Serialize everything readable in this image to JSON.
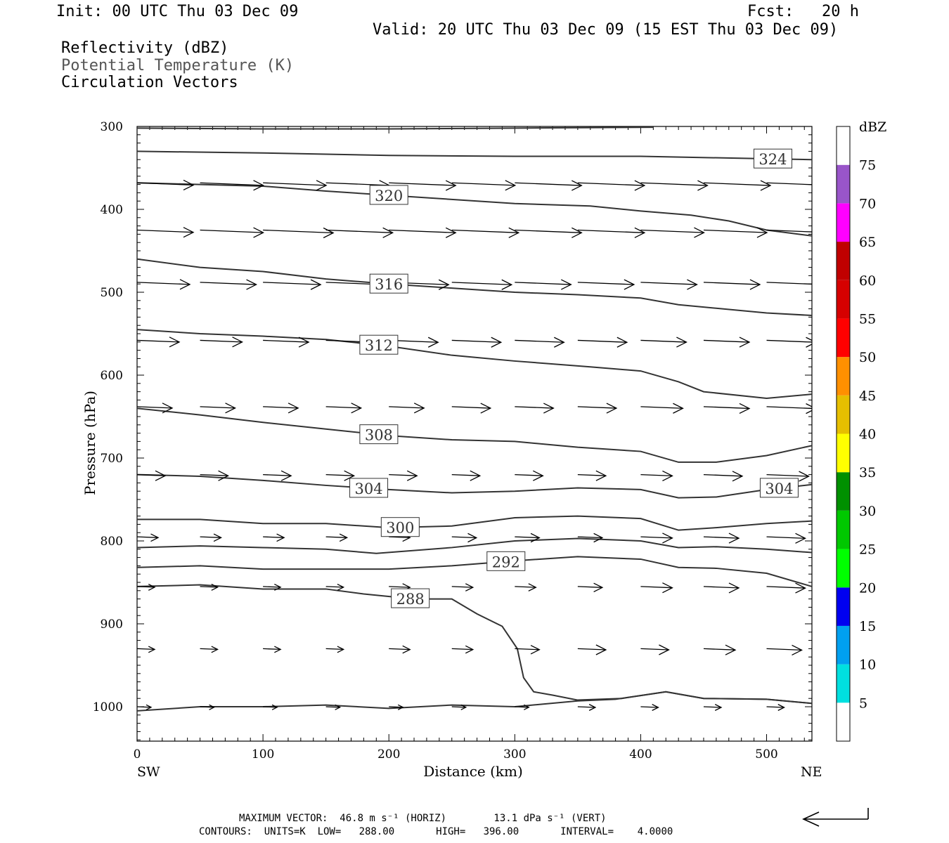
{
  "header": {
    "init": "Init: 00 UTC Thu 03 Dec 09",
    "fcst": "Fcst:   20 h",
    "valid": "Valid: 20 UTC Thu 03 Dec 09 (15 EST Thu 03 Dec 09)",
    "fields": [
      "Reflectivity (dBZ)",
      "Potential Temperature (K)",
      "Circulation Vectors"
    ]
  },
  "chart_data": {
    "type": "cross-section",
    "xlabel": "Distance (km)",
    "ylabel": "Pressure (hPa)",
    "xlim": [
      0,
      536
    ],
    "ylim": [
      1040,
      300
    ],
    "x_ticks": [
      0,
      100,
      200,
      300,
      400,
      500
    ],
    "y_ticks": [
      300,
      400,
      500,
      600,
      700,
      800,
      900,
      1000
    ],
    "x_end_labels": {
      "left": "SW",
      "right": "NE"
    },
    "colorbar": {
      "title": "dBZ",
      "labels": [
        "5",
        "10",
        "15",
        "20",
        "25",
        "30",
        "35",
        "40",
        "45",
        "50",
        "55",
        "60",
        "65",
        "70",
        "75"
      ],
      "colors": [
        "#ffffff",
        "#00e0e0",
        "#00a0f0",
        "#0000f0",
        "#00ff00",
        "#00c800",
        "#009000",
        "#ffff00",
        "#e6bf00",
        "#ff9000",
        "#ff0000",
        "#d60000",
        "#c00000",
        "#ff00ff",
        "#9955c9",
        "#ffffff"
      ]
    },
    "theta_contours": [
      {
        "level": 324,
        "label": "324",
        "points": [
          [
            0,
            330
          ],
          [
            100,
            332
          ],
          [
            200,
            335
          ],
          [
            300,
            336
          ],
          [
            400,
            336
          ],
          [
            500,
            339
          ],
          [
            536,
            340
          ]
        ],
        "label_x": 505
      },
      {
        "level": 320,
        "label": "320",
        "points": [
          [
            0,
            368
          ],
          [
            50,
            370
          ],
          [
            100,
            372
          ],
          [
            150,
            378
          ],
          [
            200,
            383
          ],
          [
            300,
            393
          ],
          [
            360,
            396
          ],
          [
            400,
            402
          ],
          [
            440,
            407
          ],
          [
            470,
            414
          ],
          [
            500,
            425
          ],
          [
            536,
            432
          ]
        ],
        "label_x": 200
      },
      {
        "level": 316,
        "label": "316",
        "points": [
          [
            0,
            460
          ],
          [
            50,
            470
          ],
          [
            100,
            475
          ],
          [
            150,
            484
          ],
          [
            200,
            490
          ],
          [
            250,
            495
          ],
          [
            300,
            500
          ],
          [
            350,
            503
          ],
          [
            400,
            507
          ],
          [
            430,
            515
          ],
          [
            500,
            525
          ],
          [
            536,
            528
          ]
        ],
        "label_x": 200
      },
      {
        "level": 312,
        "label": "312",
        "points": [
          [
            0,
            545
          ],
          [
            50,
            550
          ],
          [
            100,
            553
          ],
          [
            150,
            557
          ],
          [
            200,
            565
          ],
          [
            250,
            576
          ],
          [
            300,
            583
          ],
          [
            360,
            590
          ],
          [
            400,
            595
          ],
          [
            430,
            608
          ],
          [
            450,
            620
          ],
          [
            500,
            628
          ],
          [
            536,
            623
          ]
        ],
        "label_x": 192
      },
      {
        "level": 308,
        "label": "308",
        "points": [
          [
            0,
            640
          ],
          [
            50,
            648
          ],
          [
            100,
            657
          ],
          [
            150,
            665
          ],
          [
            200,
            673
          ],
          [
            250,
            678
          ],
          [
            300,
            680
          ],
          [
            350,
            687
          ],
          [
            400,
            692
          ],
          [
            430,
            705
          ],
          [
            460,
            705
          ],
          [
            500,
            697
          ],
          [
            536,
            685
          ]
        ],
        "label_x": 192
      },
      {
        "level": 304,
        "label": "304",
        "points": [
          [
            0,
            720
          ],
          [
            50,
            722
          ],
          [
            100,
            727
          ],
          [
            150,
            733
          ],
          [
            200,
            738
          ],
          [
            250,
            742
          ],
          [
            300,
            740
          ],
          [
            350,
            736
          ],
          [
            400,
            738
          ],
          [
            430,
            748
          ],
          [
            460,
            747
          ],
          [
            500,
            738
          ],
          [
            536,
            732
          ]
        ],
        "label_x": 184,
        "label2_x": 510
      },
      {
        "level": 300,
        "label": "300",
        "points": [
          [
            0,
            774
          ],
          [
            50,
            774
          ],
          [
            100,
            779
          ],
          [
            150,
            779
          ],
          [
            200,
            784
          ],
          [
            250,
            782
          ],
          [
            300,
            772
          ],
          [
            350,
            770
          ],
          [
            400,
            773
          ],
          [
            430,
            787
          ],
          [
            460,
            784
          ],
          [
            500,
            779
          ],
          [
            536,
            776
          ]
        ],
        "label_x": 209
      },
      {
        "level": 296,
        "label": "",
        "points": [
          [
            0,
            808
          ],
          [
            50,
            806
          ],
          [
            100,
            808
          ],
          [
            150,
            810
          ],
          [
            190,
            815
          ],
          [
            250,
            808
          ],
          [
            300,
            800
          ],
          [
            350,
            797
          ],
          [
            400,
            800
          ],
          [
            430,
            808
          ],
          [
            460,
            807
          ],
          [
            500,
            810
          ],
          [
            536,
            814
          ]
        ]
      },
      {
        "level": 292,
        "label": "292",
        "points": [
          [
            0,
            832
          ],
          [
            50,
            830
          ],
          [
            100,
            834
          ],
          [
            150,
            834
          ],
          [
            200,
            834
          ],
          [
            250,
            830
          ],
          [
            300,
            824
          ],
          [
            350,
            819
          ],
          [
            400,
            822
          ],
          [
            430,
            832
          ],
          [
            460,
            833
          ],
          [
            500,
            839
          ],
          [
            536,
            855
          ]
        ],
        "label_x": 293
      },
      {
        "level": 288,
        "label": "288",
        "points": [
          [
            0,
            855
          ],
          [
            50,
            853
          ],
          [
            100,
            858
          ],
          [
            150,
            858
          ],
          [
            180,
            864
          ],
          [
            220,
            870
          ],
          [
            250,
            870
          ],
          [
            270,
            888
          ],
          [
            290,
            903
          ],
          [
            302,
            930
          ],
          [
            307,
            965
          ],
          [
            315,
            982
          ],
          [
            330,
            986
          ],
          [
            350,
            992
          ],
          [
            385,
            990
          ],
          [
            420,
            982
          ],
          [
            450,
            990
          ],
          [
            500,
            991
          ],
          [
            536,
            996
          ]
        ],
        "label_x": 217
      },
      {
        "level": 284,
        "label": "",
        "points": [
          [
            0,
            1005
          ],
          [
            50,
            1000
          ],
          [
            100,
            1000
          ],
          [
            150,
            998
          ],
          [
            200,
            1002
          ],
          [
            250,
            998
          ],
          [
            300,
            1000
          ],
          [
            350,
            993
          ],
          [
            380,
            991
          ],
          [
            420,
            982
          ],
          [
            450,
            990
          ],
          [
            500,
            991
          ],
          [
            536,
            996
          ]
        ]
      }
    ],
    "vector_rows": [
      {
        "p": 368,
        "vectors": [
          [
            0,
            80
          ],
          [
            50,
            90
          ],
          [
            100,
            90
          ],
          [
            150,
            90
          ],
          [
            200,
            95
          ],
          [
            250,
            90
          ],
          [
            300,
            95
          ],
          [
            350,
            95
          ],
          [
            400,
            95
          ],
          [
            450,
            95
          ],
          [
            500,
            95
          ]
        ]
      },
      {
        "p": 425,
        "vectors": [
          [
            0,
            80
          ],
          [
            50,
            90
          ],
          [
            100,
            100
          ],
          [
            150,
            95
          ],
          [
            200,
            95
          ],
          [
            250,
            95
          ],
          [
            300,
            95
          ],
          [
            350,
            95
          ],
          [
            400,
            90
          ],
          [
            450,
            90
          ],
          [
            500,
            85
          ]
        ]
      },
      {
        "p": 488,
        "vectors": [
          [
            0,
            75
          ],
          [
            50,
            80
          ],
          [
            100,
            82
          ],
          [
            150,
            85
          ],
          [
            200,
            85
          ],
          [
            250,
            85
          ],
          [
            300,
            80
          ],
          [
            350,
            80
          ],
          [
            400,
            80
          ],
          [
            450,
            80
          ],
          [
            500,
            80
          ]
        ]
      },
      {
        "p": 558,
        "vectors": [
          [
            0,
            60
          ],
          [
            50,
            60
          ],
          [
            100,
            65
          ],
          [
            150,
            70
          ],
          [
            200,
            70
          ],
          [
            250,
            70
          ],
          [
            300,
            70
          ],
          [
            350,
            70
          ],
          [
            400,
            65
          ],
          [
            450,
            65
          ],
          [
            500,
            70
          ]
        ]
      },
      {
        "p": 638,
        "vectors": [
          [
            0,
            50
          ],
          [
            50,
            50
          ],
          [
            100,
            50
          ],
          [
            150,
            50
          ],
          [
            200,
            50
          ],
          [
            250,
            55
          ],
          [
            300,
            55
          ],
          [
            350,
            55
          ],
          [
            400,
            60
          ],
          [
            450,
            65
          ],
          [
            500,
            70
          ]
        ]
      },
      {
        "p": 720,
        "vectors": [
          [
            0,
            40
          ],
          [
            50,
            40
          ],
          [
            100,
            40
          ],
          [
            150,
            40
          ],
          [
            200,
            40
          ],
          [
            250,
            40
          ],
          [
            300,
            40
          ],
          [
            350,
            40
          ],
          [
            400,
            45
          ],
          [
            450,
            55
          ],
          [
            500,
            60
          ]
        ]
      },
      {
        "p": 795,
        "vectors": [
          [
            0,
            30
          ],
          [
            50,
            30
          ],
          [
            100,
            30
          ],
          [
            150,
            30
          ],
          [
            200,
            30
          ],
          [
            250,
            35
          ],
          [
            300,
            35
          ],
          [
            350,
            35
          ],
          [
            400,
            45
          ],
          [
            450,
            50
          ],
          [
            500,
            55
          ]
        ]
      },
      {
        "p": 855,
        "vectors": [
          [
            0,
            25
          ],
          [
            50,
            25
          ],
          [
            100,
            25
          ],
          [
            150,
            25
          ],
          [
            200,
            30
          ],
          [
            250,
            30
          ],
          [
            300,
            30
          ],
          [
            350,
            35
          ],
          [
            400,
            45
          ],
          [
            450,
            50
          ],
          [
            500,
            55
          ]
        ]
      },
      {
        "p": 930,
        "vectors": [
          [
            0,
            25
          ],
          [
            50,
            25
          ],
          [
            100,
            25
          ],
          [
            150,
            25
          ],
          [
            200,
            30
          ],
          [
            250,
            30
          ],
          [
            300,
            35
          ],
          [
            350,
            40
          ],
          [
            400,
            40
          ],
          [
            450,
            45
          ],
          [
            500,
            50
          ]
        ]
      },
      {
        "p": 1000,
        "vectors": [
          [
            0,
            20
          ],
          [
            50,
            20
          ],
          [
            100,
            20
          ],
          [
            150,
            20
          ],
          [
            200,
            20
          ],
          [
            250,
            20
          ],
          [
            300,
            20
          ],
          [
            350,
            25
          ],
          [
            400,
            25
          ],
          [
            450,
            25
          ],
          [
            500,
            25
          ]
        ]
      }
    ]
  },
  "footer": {
    "max_vector": "MAXIMUM VECTOR:  46.8 m s⁻¹ (HORIZ)        13.1 dPa s⁻¹ (VERT)",
    "contours": "CONTOURS:  UNITS=K  LOW=   288.00       HIGH=   396.00       INTERVAL=    4.0000"
  }
}
